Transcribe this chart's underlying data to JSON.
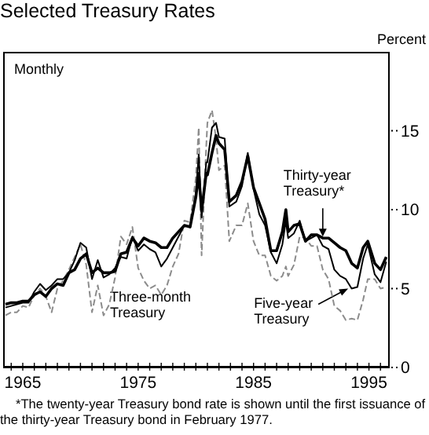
{
  "chart_data": {
    "type": "line",
    "title": "Selected Treasury Rates",
    "ylabel": "Percent",
    "x": [
      1963.5,
      1964,
      1964.5,
      1965,
      1965.5,
      1966,
      1966.5,
      1967,
      1967.5,
      1968,
      1968.5,
      1969,
      1969.5,
      1970,
      1970.5,
      1971,
      1971.5,
      1972,
      1972.5,
      1973,
      1973.5,
      1974,
      1974.5,
      1975,
      1975.5,
      1976,
      1976.5,
      1977,
      1977.5,
      1978,
      1978.5,
      1979,
      1979.5,
      1980,
      1980.25,
      1980.5,
      1980.9,
      1981,
      1981.4,
      1981.75,
      1982,
      1982.5,
      1982.9,
      1983.5,
      1984,
      1984.5,
      1985,
      1985.5,
      1986,
      1986.5,
      1987,
      1987.5,
      1987.8,
      1988,
      1988.5,
      1989,
      1989.5,
      1990,
      1990.5,
      1991,
      1991.5,
      1992,
      1992.5,
      1993,
      1993.5,
      1994,
      1994.5,
      1994.9,
      1995.5,
      1996,
      1996.5
    ],
    "series": [
      {
        "color": "#8c8c8c",
        "line_style": "dashed",
        "values": [
          3.3,
          3.5,
          3.5,
          3.9,
          3.8,
          4.6,
          5.0,
          4.5,
          3.5,
          5.0,
          5.5,
          6.2,
          7.0,
          7.8,
          6.5,
          3.5,
          5.2,
          3.3,
          4.0,
          5.7,
          8.3,
          7.8,
          8.9,
          6.3,
          5.5,
          5.0,
          5.2,
          4.6,
          5.2,
          6.4,
          7.2,
          9.3,
          9.2,
          12.0,
          15.2,
          7.1,
          14.0,
          15.5,
          16.3,
          14.5,
          12.5,
          12.8,
          8.0,
          9.0,
          9.0,
          10.4,
          8.0,
          7.1,
          7.1,
          5.8,
          5.5,
          5.8,
          6.4,
          5.8,
          6.5,
          8.3,
          8.2,
          7.7,
          7.7,
          6.2,
          5.6,
          3.9,
          3.6,
          3.0,
          3.1,
          3.0,
          4.3,
          5.6,
          5.6,
          5.0,
          5.1
        ]
      },
      {
        "color": "#000000",
        "line_style": "solid",
        "values": [
          3.8,
          3.9,
          4.0,
          4.1,
          4.1,
          4.8,
          5.3,
          4.9,
          5.2,
          5.6,
          5.6,
          6.0,
          6.8,
          7.9,
          7.6,
          5.6,
          6.8,
          5.7,
          5.9,
          6.3,
          7.0,
          6.9,
          8.3,
          7.4,
          7.8,
          7.5,
          7.3,
          6.4,
          6.9,
          7.6,
          8.3,
          9.0,
          8.9,
          11.0,
          13.5,
          9.5,
          13.0,
          13.0,
          15.2,
          15.5,
          14.6,
          14.5,
          10.2,
          10.5,
          11.5,
          13.6,
          11.3,
          9.7,
          9.0,
          7.3,
          6.6,
          7.8,
          9.3,
          8.2,
          8.5,
          9.3,
          8.0,
          8.2,
          8.4,
          7.7,
          7.5,
          6.2,
          5.8,
          5.6,
          5.0,
          5.1,
          6.9,
          7.8,
          5.9,
          5.4,
          6.7
        ]
      },
      {
        "color": "#000000",
        "line_style": "solid",
        "values": [
          4.0,
          4.1,
          4.1,
          4.2,
          4.2,
          4.6,
          4.8,
          4.5,
          5.0,
          5.3,
          5.2,
          6.0,
          6.2,
          6.9,
          7.2,
          6.0,
          6.3,
          6.0,
          6.0,
          6.1,
          7.2,
          7.3,
          8.2,
          7.7,
          8.2,
          8.0,
          7.9,
          7.6,
          7.6,
          8.2,
          8.6,
          9.0,
          8.9,
          10.8,
          12.3,
          9.9,
          12.3,
          12.2,
          13.6,
          14.7,
          14.2,
          13.8,
          10.5,
          10.9,
          11.8,
          13.4,
          11.4,
          10.4,
          9.4,
          7.4,
          7.4,
          8.6,
          10.0,
          8.6,
          9.0,
          9.1,
          8.0,
          8.4,
          8.4,
          8.2,
          8.2,
          7.9,
          7.6,
          7.4,
          6.6,
          6.3,
          7.6,
          8.0,
          6.6,
          6.2,
          7.0
        ]
      }
    ],
    "xlim": [
      1963.3,
      1996.8
    ],
    "xticks": [
      {
        "value": 1964,
        "label": null
      },
      1965,
      {
        "value": 1966,
        "label": null
      },
      {
        "value": 1967,
        "label": null
      },
      {
        "value": 1968,
        "label": null
      },
      {
        "value": 1969,
        "label": null
      },
      {
        "value": 1970,
        "label": null
      },
      {
        "value": 1971,
        "label": null
      },
      {
        "value": 1972,
        "label": null
      },
      {
        "value": 1973,
        "label": null
      },
      {
        "value": 1974,
        "label": null
      },
      1975,
      {
        "value": 1976,
        "label": null
      },
      {
        "value": 1977,
        "label": null
      },
      {
        "value": 1978,
        "label": null
      },
      {
        "value": 1979,
        "label": null
      },
      {
        "value": 1980,
        "label": null
      },
      {
        "value": 1981,
        "label": null
      },
      {
        "value": 1982,
        "label": null
      },
      {
        "value": 1983,
        "label": null
      },
      {
        "value": 1984,
        "label": null
      },
      1985,
      {
        "value": 1986,
        "label": null
      },
      {
        "value": 1987,
        "label": null
      },
      {
        "value": 1988,
        "label": null
      },
      {
        "value": 1989,
        "label": null
      },
      {
        "value": 1990,
        "label": null
      },
      {
        "value": 1991,
        "label": null
      },
      {
        "value": 1992,
        "label": null
      },
      {
        "value": 1993,
        "label": null
      },
      {
        "value": 1994,
        "label": null
      },
      1995,
      {
        "value": 1996,
        "label": null
      }
    ],
    "ylim": [
      0,
      20
    ],
    "yticks": [
      0,
      5,
      10,
      15
    ],
    "marker": "none",
    "annotations": [
      "Monthly",
      {
        "text": "Thirty-year Treasury*",
        "x": 1991,
        "y": 8.3
      },
      {
        "text": "Five-year Treasury",
        "x": 1993.2,
        "y": 5.0
      },
      "Three-month Treasury",
      "*The twenty-year Treasury bond rate is shown until the first issuance of the thirty-year Treasury bond in February 1977."
    ]
  }
}
